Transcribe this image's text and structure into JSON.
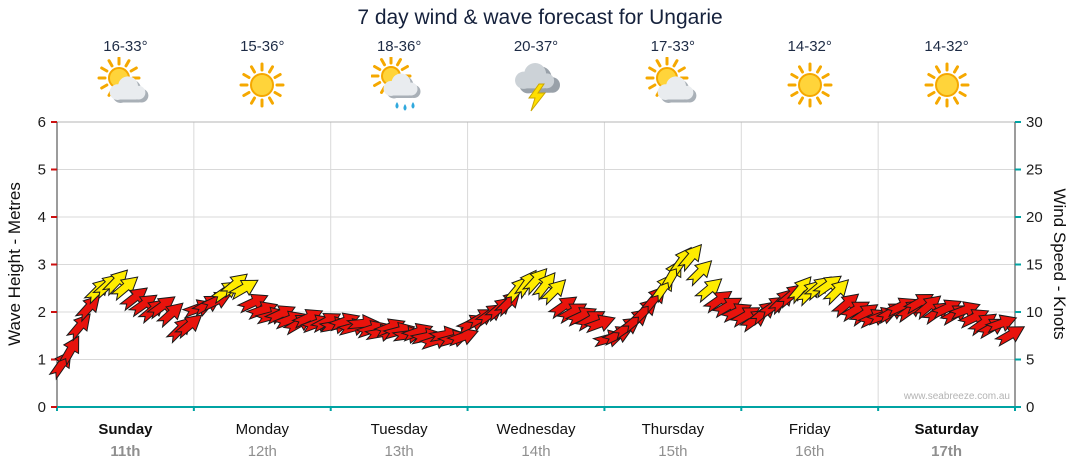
{
  "title": "7 day wind & wave forecast for Ungarie",
  "watermark": "www.seabreeze.com.au",
  "left_axis": {
    "label": "Wave Height - Metres",
    "ticks": [
      0,
      1,
      2,
      3,
      4,
      5,
      6
    ],
    "max": 6
  },
  "right_axis": {
    "label": "Wind Speed - Knots",
    "ticks": [
      0,
      5,
      10,
      15,
      20,
      25,
      30
    ],
    "max": 30
  },
  "days": [
    {
      "name": "Sunday",
      "date": "11th",
      "temp": "16-33°",
      "icon": "sun-cloud",
      "bold": true
    },
    {
      "name": "Monday",
      "date": "12th",
      "temp": "15-36°",
      "icon": "sun",
      "bold": false
    },
    {
      "name": "Tuesday",
      "date": "13th",
      "temp": "18-36°",
      "icon": "sun-cloud-rain",
      "bold": false
    },
    {
      "name": "Wednesday",
      "date": "14th",
      "temp": "20-37°",
      "icon": "storm",
      "bold": false
    },
    {
      "name": "Thursday",
      "date": "15th",
      "temp": "17-33°",
      "icon": "sun-cloud",
      "bold": false
    },
    {
      "name": "Friday",
      "date": "16th",
      "temp": "14-32°",
      "icon": "sun",
      "bold": false
    },
    {
      "name": "Saturday",
      "date": "17th",
      "temp": "14-32°",
      "icon": "sun",
      "bold": true
    }
  ],
  "chart_data": {
    "type": "wind-arrow-timeseries",
    "x_axis": "7 days, Sunday 11th to Saturday 17th",
    "y_right_unit": "knots",
    "y_left_unit": "metres",
    "ylim_knots": [
      0,
      30
    ],
    "ylim_metres": [
      0,
      6
    ],
    "grid": true,
    "samples_per_day": 15,
    "yellow_threshold_knots": 12,
    "colors": {
      "light_wind": "#e8130c",
      "strong_wind": "#ffec00",
      "outline": "#1a1a1a",
      "bottom_axis": "#00a3a3",
      "left_ticks": "#cc1111",
      "gridline": "#d9d9d9"
    },
    "days": [
      {
        "label": "Sunday",
        "knots": [
          4.5,
          6.0,
          8.5,
          10.5,
          12.3,
          12.8,
          13.2,
          12.6,
          11.5,
          10.8,
          10.2,
          10.6,
          9.8,
          8.2,
          8.6
        ],
        "dir_deg": [
          -55,
          -60,
          -50,
          -48,
          -45,
          -42,
          -46,
          -40,
          -38,
          -35,
          -40,
          -36,
          -42,
          -45,
          -40
        ]
      },
      {
        "label": "Monday",
        "knots": [
          10.4,
          10.8,
          11.2,
          12.2,
          12.9,
          12.5,
          11.0,
          10.2,
          9.6,
          9.8,
          9.2,
          8.8,
          9.4,
          8.8,
          9.0
        ],
        "dir_deg": [
          -20,
          -30,
          -25,
          -35,
          -40,
          -30,
          -25,
          -20,
          -15,
          -25,
          -20,
          -30,
          -25,
          -20,
          -28
        ]
      },
      {
        "label": "Tuesday",
        "knots": [
          8.6,
          9.0,
          8.4,
          8.8,
          8.2,
          7.8,
          8.4,
          8.0,
          7.6,
          7.9,
          7.4,
          7.0,
          7.6,
          7.2,
          7.4
        ],
        "dir_deg": [
          -10,
          -20,
          -15,
          -5,
          -18,
          -10,
          -22,
          -15,
          -8,
          -20,
          -12,
          -18,
          -10,
          -15,
          -20
        ]
      },
      {
        "label": "Wednesday",
        "knots": [
          8.8,
          9.4,
          9.8,
          10.4,
          11.0,
          12.4,
          13.0,
          13.3,
          12.8,
          12.2,
          10.6,
          10.0,
          9.6,
          9.2,
          8.8
        ],
        "dir_deg": [
          -25,
          -30,
          -35,
          -40,
          -45,
          -50,
          -55,
          -48,
          -52,
          -45,
          -35,
          -30,
          -25,
          -30,
          -20
        ]
      },
      {
        "label": "Thursday",
        "knots": [
          7.2,
          7.6,
          8.4,
          9.2,
          10.2,
          11.4,
          12.6,
          14.0,
          15.4,
          15.8,
          14.2,
          12.4,
          11.2,
          10.6,
          10.0
        ],
        "dir_deg": [
          -15,
          -25,
          -35,
          -40,
          -45,
          -50,
          -55,
          -60,
          -55,
          -50,
          -45,
          -40,
          -35,
          -30,
          -25
        ]
      },
      {
        "label": "Friday",
        "knots": [
          9.6,
          9.2,
          10.0,
          10.6,
          11.2,
          11.8,
          12.4,
          12.1,
          12.6,
          12.8,
          12.2,
          10.8,
          10.2,
          9.8,
          9.4
        ],
        "dir_deg": [
          -30,
          -35,
          -40,
          -35,
          -45,
          -40,
          -50,
          -45,
          -40,
          -35,
          -45,
          -40,
          -30,
          -35,
          -25
        ]
      },
      {
        "label": "Saturday",
        "knots": [
          9.6,
          10.0,
          10.6,
          10.2,
          11.0,
          10.6,
          10.0,
          10.4,
          9.8,
          10.2,
          9.4,
          8.8,
          8.4,
          8.8,
          7.6
        ],
        "dir_deg": [
          -20,
          -30,
          -25,
          -35,
          -30,
          -40,
          -35,
          -25,
          -30,
          -20,
          -25,
          -35,
          -30,
          -20,
          -30
        ]
      }
    ]
  }
}
